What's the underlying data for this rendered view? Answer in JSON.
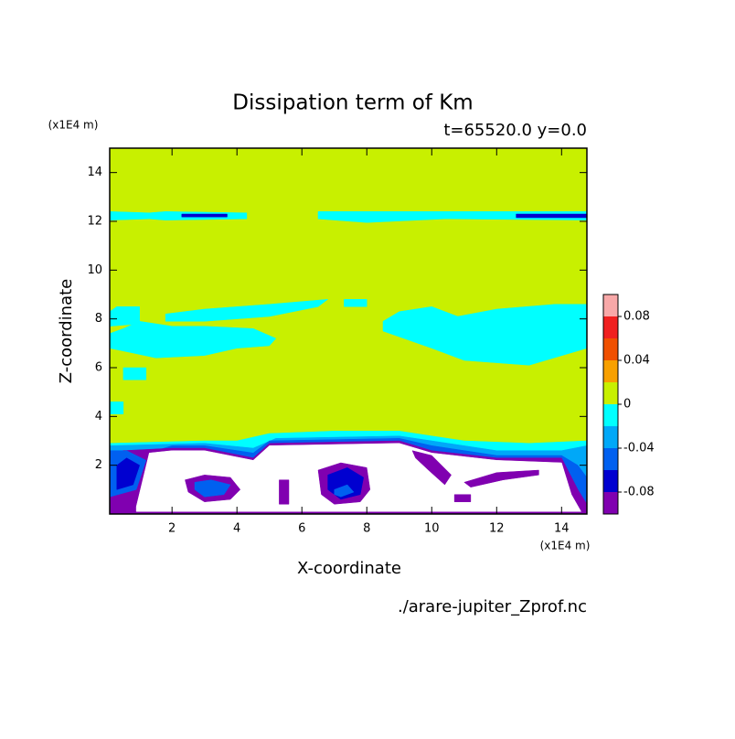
{
  "chart_data": {
    "type": "contour",
    "title": "Dissipation term of Km",
    "subtitle": "t=65520.0 y=0.0",
    "x_label": "X-coordinate",
    "y_label": "Z-coordinate",
    "x_unit": "(x1E4 m)",
    "y_unit": "(x1E4 m)",
    "source": "./arare-jupiter_Zprof.nc",
    "xlim": [
      0.08,
      14.78
    ],
    "ylim": [
      0,
      15
    ],
    "xticks": [
      2,
      4,
      6,
      8,
      10,
      12,
      14
    ],
    "yticks": [
      2,
      4,
      6,
      8,
      10,
      12,
      14
    ],
    "colorbar": {
      "levels": [
        -0.1,
        -0.08,
        -0.06,
        -0.04,
        -0.02,
        0,
        0.02,
        0.04,
        0.06,
        0.08,
        0.1
      ],
      "colors": [
        "#8000b0",
        "#0000d0",
        "#0060f0",
        "#00a8f8",
        "#00ffff",
        "#c8f000",
        "#f8a000",
        "#f05000",
        "#f02020",
        "#f8a8a8"
      ],
      "ticks": [
        -0.08,
        -0.04,
        0,
        0.04,
        0.08
      ]
    },
    "fills": [
      {
        "color": "#c8f000",
        "x": [
          0.08,
          14.78,
          14.78,
          0.08
        ],
        "z": [
          0,
          0,
          15,
          15
        ]
      },
      {
        "color": "#00ffff",
        "x": [
          0.08,
          1.3,
          1.8,
          4.3,
          4.3,
          1.8,
          1.3,
          0.08
        ],
        "z": [
          12.05,
          12.1,
          12.05,
          12.1,
          12.35,
          12.4,
          12.35,
          12.4
        ]
      },
      {
        "color": "#00ffff",
        "x": [
          6.5,
          8,
          10.4,
          10.6,
          14.78,
          14.78,
          10.6,
          10.4,
          6.5
        ],
        "z": [
          12.1,
          11.95,
          12.1,
          12.1,
          12.05,
          12.4,
          12.4,
          12.4,
          12.4
        ]
      },
      {
        "color": "#0000d0",
        "x": [
          2.3,
          3.7,
          3.7,
          2.3
        ],
        "z": [
          12.18,
          12.18,
          12.3,
          12.3
        ]
      },
      {
        "color": "#0000d0",
        "x": [
          12.6,
          14.78,
          14.78,
          12.6
        ],
        "z": [
          12.15,
          12.15,
          12.3,
          12.3
        ]
      },
      {
        "color": "#00ffff",
        "x": [
          0.08,
          1,
          1,
          0.3,
          0.08
        ],
        "z": [
          7.7,
          7.8,
          8.5,
          8.5,
          8.3
        ]
      },
      {
        "color": "#00ffff",
        "x": [
          0.08,
          0.8,
          1.5,
          3,
          4,
          5,
          5.2,
          4.5,
          3,
          2,
          1,
          0.5,
          0.08
        ],
        "z": [
          6.8,
          6.6,
          6.4,
          6.5,
          6.8,
          6.9,
          7.2,
          7.6,
          7.7,
          7.7,
          7.9,
          7.6,
          7.4
        ]
      },
      {
        "color": "#00ffff",
        "x": [
          1.8,
          3,
          5,
          6.5,
          6.8,
          5,
          3,
          1.8
        ],
        "z": [
          7.9,
          7.9,
          8.1,
          8.5,
          8.8,
          8.6,
          8.4,
          8.2
        ]
      },
      {
        "color": "#00ffff",
        "x": [
          0.5,
          1.2,
          1.2,
          0.5
        ],
        "z": [
          5.5,
          5.5,
          6,
          6
        ]
      },
      {
        "color": "#00ffff",
        "x": [
          0.08,
          0.5,
          0.5,
          0.08
        ],
        "z": [
          4.1,
          4.1,
          4.6,
          4.6
        ]
      },
      {
        "color": "#00ffff",
        "x": [
          7.3,
          8,
          8,
          7.3
        ],
        "z": [
          8.5,
          8.5,
          8.8,
          8.8
        ]
      },
      {
        "color": "#00ffff",
        "x": [
          8.5,
          10,
          11,
          13,
          14.78,
          14.78,
          13.8,
          12,
          10.8,
          10,
          9,
          8.5
        ],
        "z": [
          7.5,
          6.8,
          6.3,
          6.1,
          6.8,
          8.6,
          8.6,
          8.4,
          8.1,
          8.5,
          8.3,
          7.9
        ]
      },
      {
        "color": "#00ffff",
        "x": [
          0.08,
          3,
          4,
          5,
          7,
          9,
          10,
          11,
          13,
          14.78,
          14.78,
          0.08
        ],
        "z": [
          2.9,
          3,
          3,
          3.3,
          3.4,
          3.4,
          3.2,
          3,
          2.9,
          3,
          0,
          0
        ]
      },
      {
        "color": "#00a8f8",
        "x": [
          0.08,
          3,
          4.5,
          5.2,
          9,
          10,
          12,
          14,
          14.78,
          14.78,
          0.08
        ],
        "z": [
          2.8,
          2.9,
          2.7,
          3.1,
          3.2,
          3,
          2.6,
          2.6,
          2.8,
          0,
          0
        ]
      },
      {
        "color": "#0060f0",
        "x": [
          0.08,
          1.5,
          2,
          3,
          4.5,
          5,
          9,
          10,
          12,
          14,
          14.5,
          14.78,
          14.78,
          0.08
        ],
        "z": [
          2.6,
          2.6,
          2.8,
          2.8,
          2.5,
          3,
          3.1,
          2.8,
          2.4,
          2.4,
          2,
          1.5,
          0,
          0
        ]
      },
      {
        "color": "#8000b0",
        "x": [
          0.08,
          0.5,
          2,
          3,
          4.5,
          5,
          9,
          10,
          12,
          14,
          14.5,
          14.78,
          14.78,
          0.08
        ],
        "z": [
          0.6,
          2.6,
          2.7,
          2.7,
          2.3,
          2.9,
          3,
          2.6,
          2.3,
          2.3,
          1,
          0.4,
          0,
          0
        ]
      },
      {
        "color": "#0060f0",
        "x": [
          0.08,
          0.9,
          1.2,
          0.6,
          0.08
        ],
        "z": [
          0.7,
          1,
          2.2,
          2.6,
          2.5
        ]
      },
      {
        "color": "#0000d0",
        "x": [
          0.3,
          0.8,
          1,
          0.6,
          0.3
        ],
        "z": [
          1,
          1.2,
          2,
          2.3,
          2
        ]
      },
      {
        "color": "#ffffff",
        "x": [
          0.9,
          1.3,
          2,
          3,
          4.5,
          5,
          9,
          10,
          12,
          14,
          14.3,
          14.6,
          0.9
        ],
        "z": [
          0.3,
          2.5,
          2.6,
          2.6,
          2.2,
          2.8,
          2.9,
          2.5,
          2.2,
          2.1,
          0.8,
          0.1,
          0.1
        ]
      },
      {
        "color": "#8000b0",
        "x": [
          2.4,
          3,
          3.8,
          4.1,
          3.8,
          3,
          2.5
        ],
        "z": [
          1.4,
          1.6,
          1.5,
          1,
          0.6,
          0.5,
          0.9
        ]
      },
      {
        "color": "#0060f0",
        "x": [
          2.7,
          3.2,
          3.8,
          3.6,
          3,
          2.7
        ],
        "z": [
          1.3,
          1.4,
          1.2,
          0.8,
          0.7,
          1
        ]
      },
      {
        "color": "#8000b0",
        "x": [
          6.5,
          7.2,
          8,
          8.1,
          7.8,
          7,
          6.6
        ],
        "z": [
          1.8,
          2.1,
          1.9,
          1,
          0.5,
          0.4,
          0.8
        ]
      },
      {
        "color": "#0000d0",
        "x": [
          6.8,
          7.4,
          7.9,
          7.8,
          7.2,
          6.8
        ],
        "z": [
          1.6,
          1.9,
          1.5,
          0.8,
          0.6,
          1
        ]
      },
      {
        "color": "#0060f0",
        "x": [
          7,
          7.4,
          7.6,
          7.2,
          7
        ],
        "z": [
          1,
          1.2,
          0.9,
          0.7,
          0.8
        ]
      },
      {
        "color": "#8000b0",
        "x": [
          5.3,
          5.6,
          5.6,
          5.3
        ],
        "z": [
          0.4,
          0.4,
          1.4,
          1.4
        ]
      },
      {
        "color": "#8000b0",
        "x": [
          11,
          12,
          13.3,
          13.3,
          12.2,
          11.2
        ],
        "z": [
          1.3,
          1.7,
          1.8,
          1.6,
          1.4,
          1.1
        ]
      },
      {
        "color": "#8000b0",
        "x": [
          9.4,
          10,
          10.6,
          10.4,
          9.9,
          9.5
        ],
        "z": [
          2.6,
          2.4,
          1.6,
          1.2,
          1.8,
          2.3
        ]
      },
      {
        "color": "#8000b0",
        "x": [
          10.7,
          11.2,
          11.2,
          10.7
        ],
        "z": [
          0.5,
          0.5,
          0.8,
          0.8
        ]
      }
    ]
  }
}
